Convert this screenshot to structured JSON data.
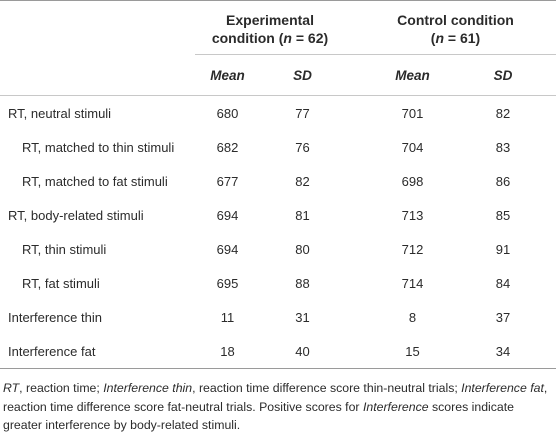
{
  "table": {
    "groups": [
      {
        "title": "Experimental",
        "sample": [
          "condition (",
          "n",
          " = 62)"
        ]
      },
      {
        "title": "Control condition",
        "sample": [
          "(",
          "n",
          " = 61)"
        ]
      }
    ],
    "subheaders": [
      "Mean",
      "SD",
      "Mean",
      "SD"
    ],
    "rows": [
      {
        "label": "RT, neutral stimuli",
        "indent": false,
        "values": [
          680,
          77,
          701,
          82
        ]
      },
      {
        "label": "RT, matched to thin stimuli",
        "indent": true,
        "values": [
          682,
          76,
          704,
          83
        ]
      },
      {
        "label": "RT, matched to fat stimuli",
        "indent": true,
        "values": [
          677,
          82,
          698,
          86
        ]
      },
      {
        "label": "RT, body-related stimuli",
        "indent": false,
        "values": [
          694,
          81,
          713,
          85
        ]
      },
      {
        "label": "RT, thin stimuli",
        "indent": true,
        "values": [
          694,
          80,
          712,
          91
        ]
      },
      {
        "label": "RT, fat stimuli",
        "indent": true,
        "values": [
          695,
          88,
          714,
          84
        ]
      },
      {
        "label": "Interference thin",
        "indent": false,
        "values": [
          11,
          31,
          8,
          37
        ]
      },
      {
        "label": "Interference fat",
        "indent": false,
        "values": [
          18,
          40,
          15,
          34
        ]
      }
    ],
    "footnote": [
      {
        "text": "RT",
        "italic": true
      },
      {
        "text": ", reaction time; ",
        "italic": false
      },
      {
        "text": "Interference thin",
        "italic": true
      },
      {
        "text": ", reaction time difference score thin-neutral trials; ",
        "italic": false
      },
      {
        "text": "Interference fat",
        "italic": true
      },
      {
        "text": ", reaction time difference score fat-neutral trials. Positive scores for ",
        "italic": false
      },
      {
        "text": "Interference",
        "italic": true
      },
      {
        "text": " scores indicate greater interference by body-related stimuli.",
        "italic": false
      }
    ]
  }
}
